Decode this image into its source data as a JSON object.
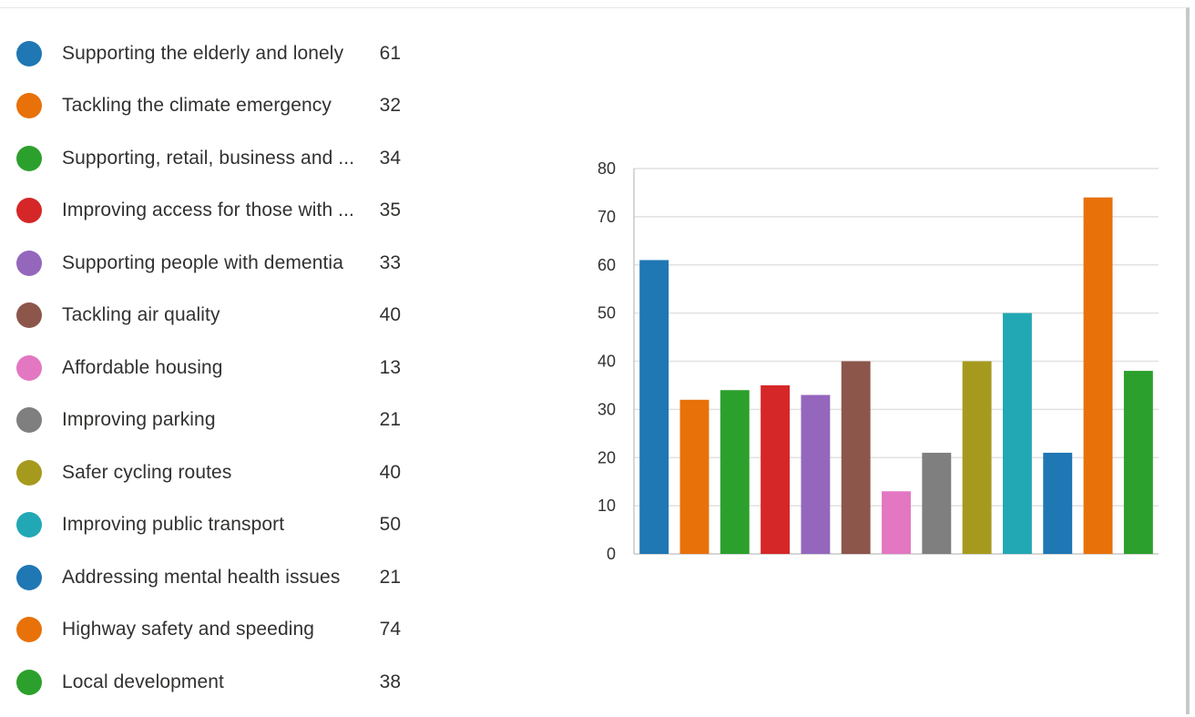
{
  "chart_data": {
    "type": "bar",
    "categories": [
      "Supporting the elderly and lonely",
      "Tackling the climate emergency",
      "Supporting, retail, business and ...",
      "Improving access for those with ...",
      "Supporting people with dementia",
      "Tackling air quality",
      "Affordable housing",
      "Improving parking",
      "Safer cycling routes",
      "Improving public transport",
      "Addressing mental health issues",
      "Highway safety and speeding",
      "Local development"
    ],
    "values": [
      61,
      32,
      34,
      35,
      33,
      40,
      13,
      21,
      40,
      50,
      21,
      74,
      38
    ],
    "colors": [
      "#1f77b4",
      "#e8710a",
      "#2ca02c",
      "#d62728",
      "#9467bd",
      "#8c564b",
      "#e377c2",
      "#7f7f7f",
      "#a69a1e",
      "#22a8b4",
      "#1f77b4",
      "#e8710a",
      "#2ca02c"
    ],
    "yticks": [
      "0",
      "10",
      "20",
      "30",
      "40",
      "50",
      "60",
      "70",
      "80"
    ],
    "ylim": [
      0,
      80
    ],
    "grid": true,
    "legend_position": "left",
    "title": "",
    "xlabel": "",
    "ylabel": ""
  }
}
